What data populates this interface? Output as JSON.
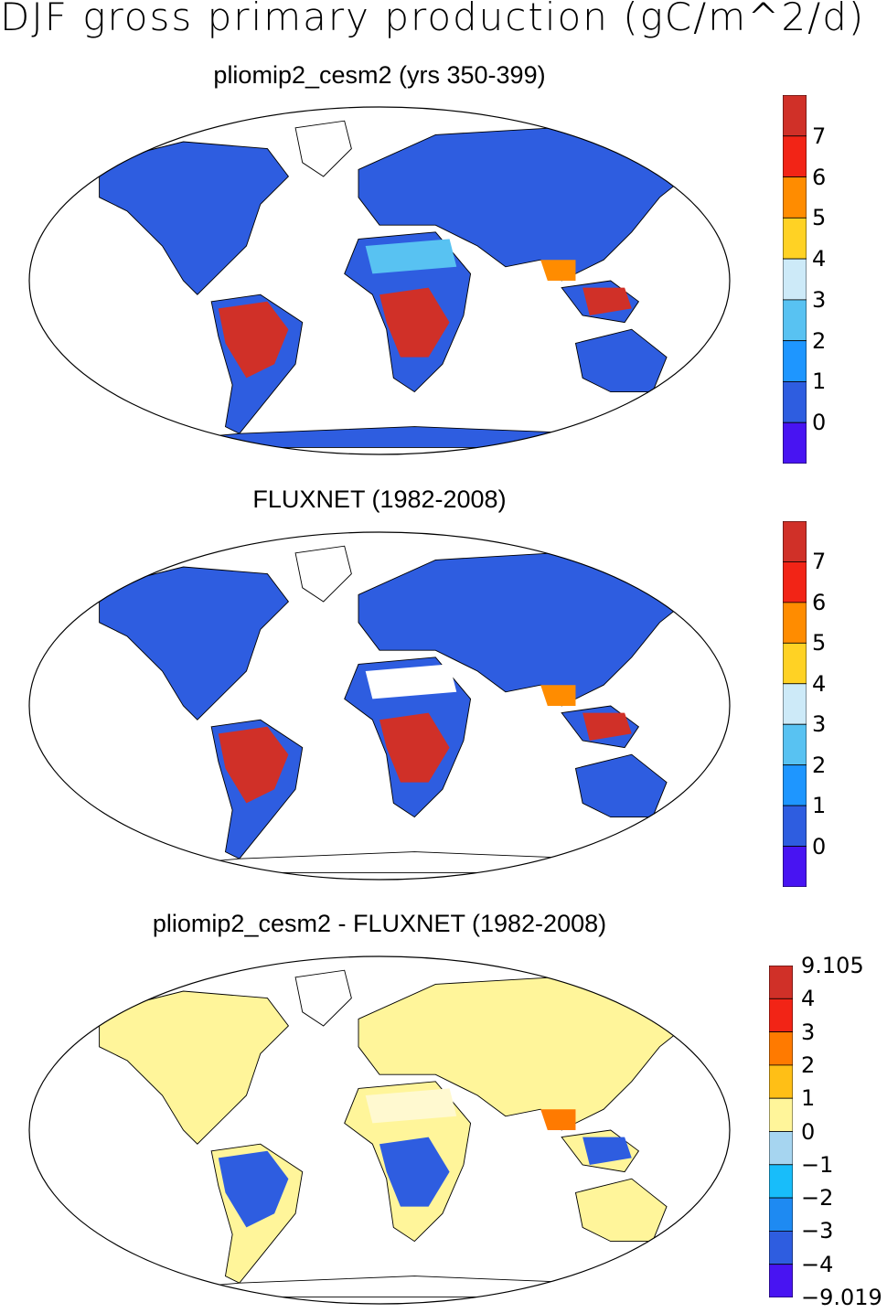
{
  "title": "DJF gross primary production (gC/m^2/d)",
  "panels": [
    {
      "title": "pliomip2_cesm2 (yrs 350-399)",
      "colorbar": {
        "colors": [
          "#d03028",
          "#f22416",
          "#ff8c00",
          "#ffd224",
          "#cdeaf8",
          "#58c2f2",
          "#1e96ff",
          "#2e5de0",
          "#4814f2"
        ],
        "labels": [
          "7",
          "6",
          "5",
          "4",
          "3",
          "2",
          "1",
          "0"
        ]
      }
    },
    {
      "title": "FLUXNET (1982-2008)",
      "colorbar": {
        "colors": [
          "#d03028",
          "#f22416",
          "#ff8c00",
          "#ffd224",
          "#cdeaf8",
          "#58c2f2",
          "#1e96ff",
          "#2e5de0",
          "#4814f2"
        ],
        "labels": [
          "7",
          "6",
          "5",
          "4",
          "3",
          "2",
          "1",
          "0"
        ]
      }
    },
    {
      "title": "pliomip2_cesm2 - FLUXNET (1982-2008)",
      "colorbar": {
        "colors": [
          "#d03028",
          "#f22416",
          "#ff7a00",
          "#ffbf16",
          "#fff59a",
          "#a6d5f0",
          "#18bdfa",
          "#1e8af2",
          "#2e5de0",
          "#4814f2"
        ],
        "labels": [
          "9.105",
          "4",
          "3",
          "2",
          "1",
          "0",
          "−1",
          "−2",
          "−3",
          "−4",
          "−9.019"
        ]
      }
    }
  ]
}
